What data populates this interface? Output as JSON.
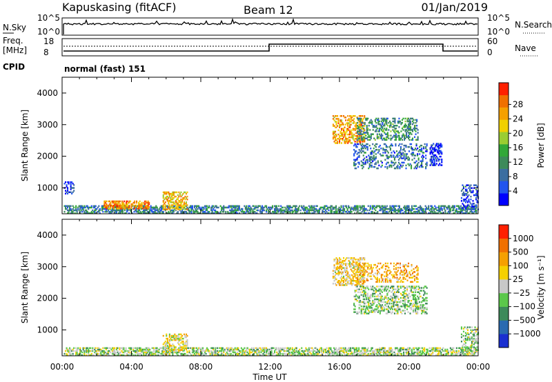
{
  "header": {
    "station": "Kapuskasing (fitACF)",
    "beam": "Beam 12",
    "date": "01/Jan/2019"
  },
  "top_panels": {
    "nsky_label": "N.Sky",
    "nsearch_label": "N.Search",
    "nsky_ticks": [
      "10^5",
      "10^0"
    ],
    "nsearch_ticks": [
      "10^5",
      "10^0"
    ],
    "freq_label_1": "Freq.",
    "freq_label_2": "[MHz]",
    "freq_ticks": [
      "18",
      "8"
    ],
    "nave_label": "Nave",
    "nave_ticks": [
      "60",
      "0"
    ],
    "cpid_label": "CPID",
    "cpid_value": "normal (fast) 151"
  },
  "chart_data": [
    {
      "type": "heatmap",
      "title": "",
      "ylabel": "Slant Range [km]",
      "xlabel": "",
      "x_ticks": [
        "00:00",
        "04:00",
        "08:00",
        "12:00",
        "16:00",
        "20:00",
        "00:00"
      ],
      "y_ticks": [
        1000,
        2000,
        3000,
        4000
      ],
      "ylim": [
        180,
        4500
      ],
      "xlim_hours": [
        0,
        24
      ],
      "colorbar": {
        "label": "Power [dB]",
        "ticks": [
          "4",
          "8",
          "12",
          "16",
          "20",
          "24",
          "28"
        ],
        "colors": [
          "#0000ff",
          "#2255ee",
          "#3c6ea0",
          "#3d8a5a",
          "#32a838",
          "#9acd32",
          "#f0d000",
          "#f5a000",
          "#f07000",
          "#ff2000"
        ]
      },
      "regions": [
        {
          "t0": 0.1,
          "t1": 23.9,
          "r0": 180,
          "r1": 420,
          "density": 0.55,
          "level": 0.3
        },
        {
          "t0": 2.4,
          "t1": 5.0,
          "r0": 330,
          "r1": 560,
          "density": 0.6,
          "level": 0.8
        },
        {
          "t0": 5.8,
          "t1": 7.2,
          "r0": 300,
          "r1": 850,
          "density": 0.45,
          "level": 0.7
        },
        {
          "t0": 15.6,
          "t1": 17.4,
          "r0": 2400,
          "r1": 3300,
          "density": 0.45,
          "level": 0.75
        },
        {
          "t0": 17.0,
          "t1": 20.5,
          "r0": 2500,
          "r1": 3200,
          "density": 0.35,
          "level": 0.35
        },
        {
          "t0": 16.8,
          "t1": 21.0,
          "r0": 1600,
          "r1": 2400,
          "density": 0.3,
          "level": 0.25
        },
        {
          "t0": 21.2,
          "t1": 21.9,
          "r0": 1700,
          "r1": 2400,
          "density": 0.45,
          "level": 0.1
        },
        {
          "t0": 23.0,
          "t1": 24.0,
          "r0": 300,
          "r1": 1100,
          "density": 0.35,
          "level": 0.15
        },
        {
          "t0": 0.1,
          "t1": 0.7,
          "r0": 800,
          "r1": 1200,
          "density": 0.3,
          "level": 0.12
        }
      ]
    },
    {
      "type": "heatmap",
      "title": "",
      "ylabel": "Slant Range [km]",
      "xlabel": "Time UT",
      "x_ticks": [
        "00:00",
        "04:00",
        "08:00",
        "12:00",
        "16:00",
        "20:00",
        "00:00"
      ],
      "y_ticks": [
        1000,
        2000,
        3000,
        4000
      ],
      "ylim": [
        180,
        4500
      ],
      "xlim_hours": [
        0,
        24
      ],
      "colorbar": {
        "label": "Velocity [m s⁻¹]",
        "ticks": [
          "1000",
          "500",
          "100",
          "25",
          "−25",
          "−100",
          "−500",
          "−1000"
        ],
        "colors": [
          "#1a2fd0",
          "#2a6ab0",
          "#3d8a5a",
          "#5bc84a",
          "#c8c8c8",
          "#f5d000",
          "#f5a000",
          "#f07000",
          "#ff2000"
        ]
      },
      "regions": [
        {
          "t0": 0.1,
          "t1": 23.9,
          "r0": 180,
          "r1": 420,
          "density": 0.55,
          "level": 0.45
        },
        {
          "t0": 5.8,
          "t1": 7.2,
          "r0": 300,
          "r1": 850,
          "density": 0.4,
          "level": 0.55
        },
        {
          "t0": 15.6,
          "t1": 17.4,
          "r0": 2400,
          "r1": 3300,
          "density": 0.45,
          "level": 0.6
        },
        {
          "t0": 17.0,
          "t1": 20.5,
          "r0": 2500,
          "r1": 3100,
          "density": 0.3,
          "level": 0.7
        },
        {
          "t0": 16.8,
          "t1": 21.0,
          "r0": 1500,
          "r1": 2400,
          "density": 0.35,
          "level": 0.42
        },
        {
          "t0": 23.0,
          "t1": 24.0,
          "r0": 300,
          "r1": 1100,
          "density": 0.35,
          "level": 0.42
        }
      ]
    }
  ]
}
